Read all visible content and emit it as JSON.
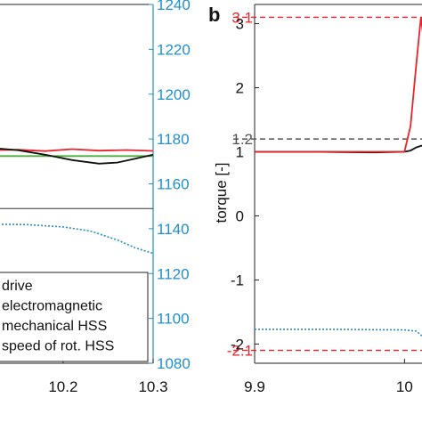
{
  "chart_data": [
    {
      "type": "line",
      "panel": "a (partial, cropped at left)",
      "xlim": [
        10.12,
        10.3
      ],
      "x_ticks": [
        {
          "value": 10.2,
          "label": "10.2"
        },
        {
          "value": 10.3,
          "label": "10.3"
        }
      ],
      "y_right": {
        "ylim": [
          1080,
          1240
        ],
        "ticks": [
          {
            "value": 1240,
            "label": "1240"
          },
          {
            "value": 1220,
            "label": "1220"
          },
          {
            "value": 1200,
            "label": "1200"
          },
          {
            "value": 1180,
            "label": "1180"
          },
          {
            "value": 1160,
            "label": "1160"
          },
          {
            "value": 1140,
            "label": "1140"
          },
          {
            "value": 1120,
            "label": "1120"
          },
          {
            "value": 1100,
            "label": "1100"
          },
          {
            "value": 1080,
            "label": "1080"
          }
        ]
      },
      "hline_right": 1149,
      "legend": {
        "placement": "bottom",
        "entries": [
          {
            "label": "drive",
            "color": "#7a7a7a"
          },
          {
            "label": "electromagnetic",
            "color": "#e8232a"
          },
          {
            "label": "mechanical HSS",
            "color": "#111111"
          },
          {
            "label": "speed of rot. HSS",
            "color": "#1f8fc9"
          }
        ]
      },
      "series": [
        {
          "color": "#e8232a",
          "axis": "right",
          "x": [
            10.12,
            10.15,
            10.18,
            10.21,
            10.24,
            10.27,
            10.3
          ],
          "y": [
            1175,
            1175.2,
            1174.6,
            1175.5,
            1174.8,
            1175.1,
            1174.7
          ]
        },
        {
          "color": "#4caf3a",
          "axis": "right",
          "x": [
            10.12,
            10.3
          ],
          "y": [
            1172.4,
            1172.4
          ]
        },
        {
          "color": "#111111",
          "axis": "right",
          "x": [
            10.12,
            10.15,
            10.18,
            10.21,
            10.24,
            10.26,
            10.28,
            10.3
          ],
          "y": [
            1176,
            1175,
            1173,
            1170.6,
            1169,
            1169.5,
            1171.2,
            1173
          ]
        },
        {
          "color": "#1f8fc9",
          "axis": "right",
          "dashed": true,
          "x": [
            10.12,
            10.16,
            10.2,
            10.23,
            10.26,
            10.28,
            10.3
          ],
          "y": [
            1142,
            1141.8,
            1140.8,
            1139,
            1135,
            1131.5,
            1129
          ]
        }
      ]
    },
    {
      "type": "line",
      "panel_label": "b",
      "ylabel": "torque [-]",
      "xlim": [
        9.9,
        10.02
      ],
      "ylim": [
        -2.3,
        3.3
      ],
      "x_ticks": [
        {
          "value": 9.9,
          "label": "9.9"
        },
        {
          "value": 10.0,
          "label": "10"
        }
      ],
      "y_ticks": [
        {
          "value": 3,
          "label": "3"
        },
        {
          "value": 2,
          "label": "2"
        },
        {
          "value": 1,
          "label": "1"
        },
        {
          "value": 0,
          "label": "0"
        },
        {
          "value": -1,
          "label": "-1"
        },
        {
          "value": -2,
          "label": "-2"
        }
      ],
      "reference_lines": [
        {
          "value": 3.1,
          "label": "3.1",
          "color": "#e8232a"
        },
        {
          "value": 1.2,
          "label": "1.2",
          "color": "#555555"
        },
        {
          "value": -2.1,
          "label": "-2.1",
          "color": "#e8232a"
        }
      ],
      "series": [
        {
          "color": "#1f8fc9",
          "dashed": true,
          "x": [
            9.9,
            9.95,
            10.0,
            10.008,
            10.012,
            10.014,
            10.016,
            10.018
          ],
          "y": [
            -1.77,
            -1.77,
            -1.78,
            -1.8,
            -1.88,
            -2.05,
            -2.18,
            -2.22
          ]
        },
        {
          "color": "#4caf3a",
          "x": [
            9.9,
            10.0
          ],
          "y": [
            1.0,
            1.0
          ]
        },
        {
          "color": "#111111",
          "x": [
            9.9,
            9.94,
            9.98,
            10.0,
            10.004,
            10.008,
            10.012,
            10.016,
            10.02
          ],
          "y": [
            1.0,
            1.0,
            0.99,
            1.0,
            1.02,
            1.07,
            1.1,
            1.0,
            0.92
          ]
        },
        {
          "color": "#e8232a",
          "x": [
            9.9,
            9.99,
            10.0,
            10.004,
            10.008,
            10.011,
            10.014,
            10.017,
            10.02
          ],
          "y": [
            1.0,
            1.0,
            1.0,
            1.4,
            2.4,
            3.1,
            2.5,
            1.2,
            0.0
          ]
        }
      ]
    }
  ]
}
